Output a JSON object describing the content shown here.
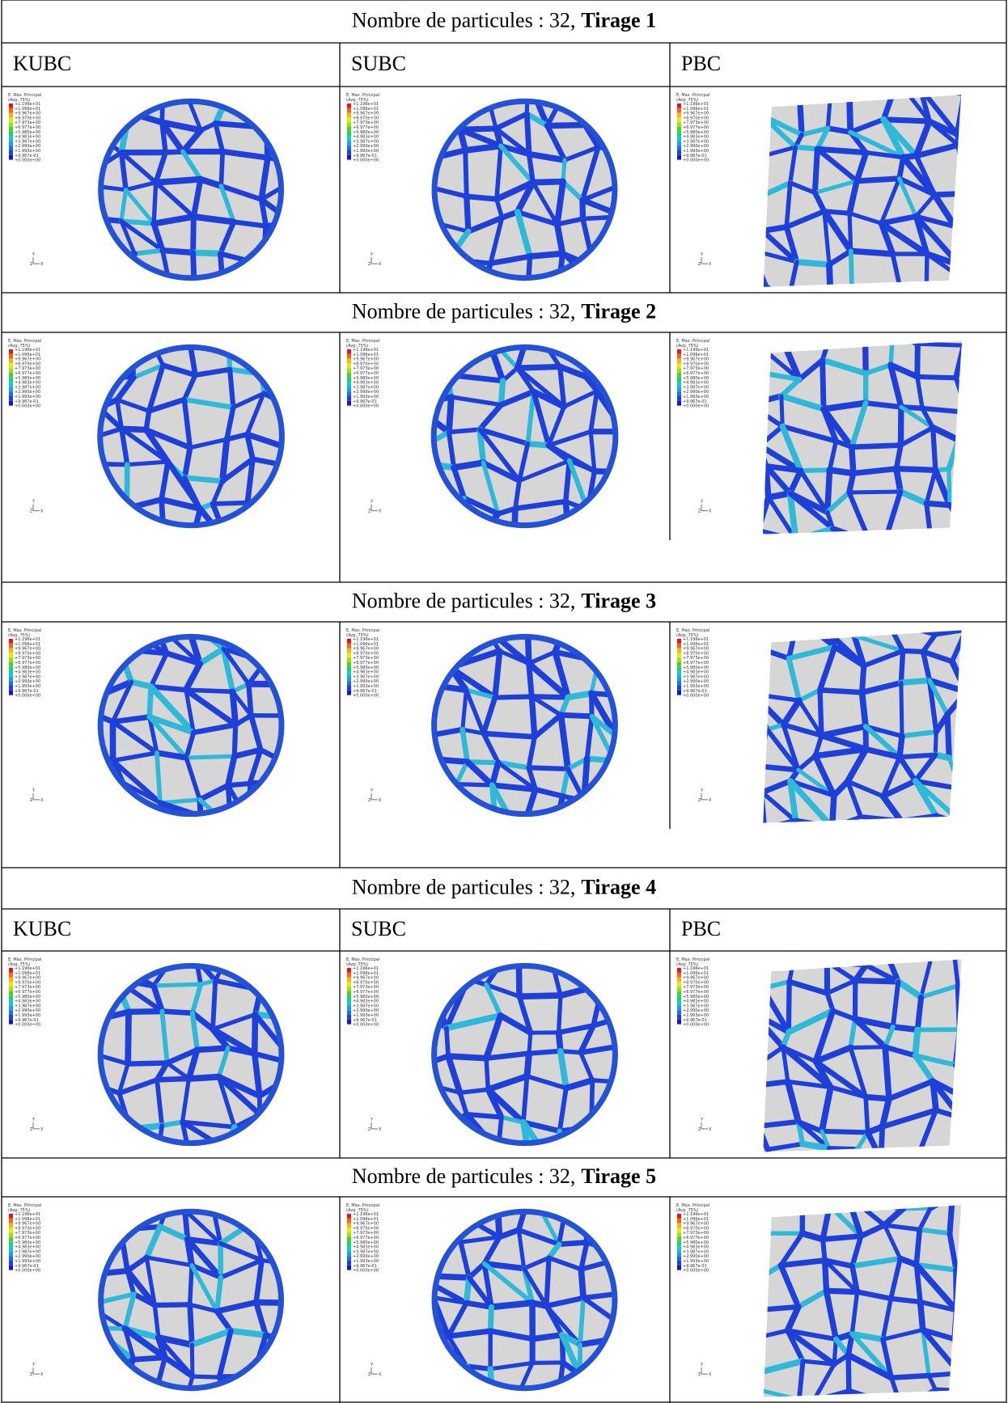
{
  "sections": [
    {
      "header": {
        "prefix": "Nombre de particules : 32,",
        "bold": "Tirage 1"
      },
      "columns": [
        "KUBC",
        "SUBC",
        "PBC"
      ]
    },
    {
      "header": {
        "prefix": "Nombre de particules : 32,",
        "bold": "Tirage 2"
      }
    },
    {
      "header": {
        "prefix": "Nombre de particules : 32,",
        "bold": "Tirage 3"
      }
    },
    {
      "header": {
        "prefix": "Nombre de particules : 32,",
        "bold": "Tirage 4"
      },
      "columns": [
        "KUBC",
        "SUBC",
        "PBC"
      ]
    },
    {
      "header": {
        "prefix": "Nombre de particules : 32,",
        "bold": "Tirage 5"
      }
    }
  ],
  "legend": {
    "title": "E, Max. Principal",
    "subtitle": "(Avg: 75%)",
    "levels": [
      "+1.196e+01",
      "+1.096e+01",
      "+9.967e+00",
      "+8.970e+00",
      "+7.973e+00",
      "+6.977e+00",
      "+5.980e+00",
      "+4.983e+00",
      "+3.987e+00",
      "+2.990e+00",
      "+1.993e+00",
      "+9.967e-01",
      "+0.000e+00"
    ]
  },
  "triad": {
    "y": "Y",
    "z": "Z",
    "x": "X"
  }
}
